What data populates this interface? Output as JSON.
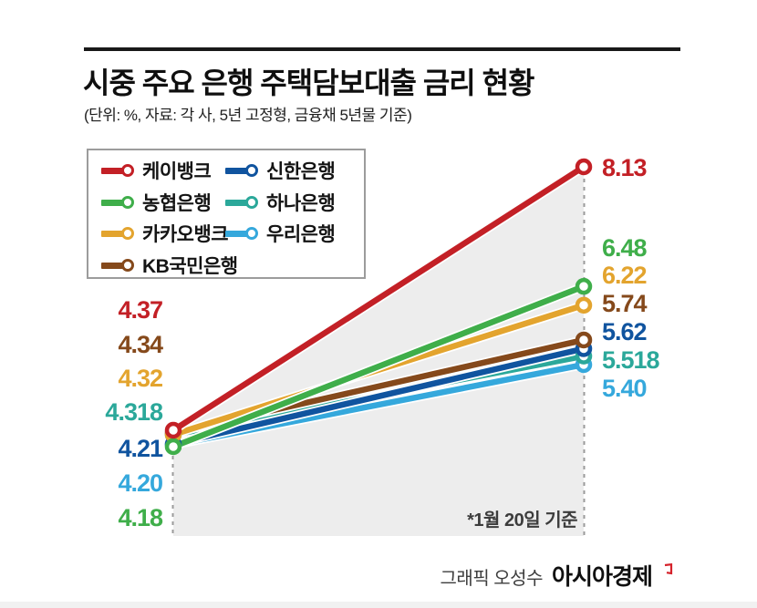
{
  "header": {
    "title": "시중 주요 은행 주택담보대출 금리 현황",
    "subtitle": "(단위: %, 자료: 각 사, 5년 고정형, 금융채 5년물 기준)"
  },
  "note": "*1월 20일 기준",
  "footer": {
    "credit": "그래픽 오성수",
    "brand": "아시아경제"
  },
  "colors": {
    "shade": "#ededed",
    "dashed_line": "#9b9b9b",
    "brand_mark": "#d5212a"
  },
  "chart_data": {
    "type": "line",
    "title": "시중 주요 은행 주택담보대출 금리 현황",
    "unit": "%",
    "annotation": "*1월 20일 기준",
    "legend_position": "top-left",
    "legend_columns": [
      [
        "케이뱅크",
        "농협은행",
        "카카오뱅크",
        "KB국민은행"
      ],
      [
        "신한은행",
        "하나은행",
        "우리은행"
      ]
    ],
    "series": [
      {
        "name": "케이뱅크",
        "color": "#c32026",
        "values": [
          4.37,
          8.13
        ],
        "labels": [
          "4.37",
          "8.13"
        ]
      },
      {
        "name": "농협은행",
        "color": "#3fae4a",
        "values": [
          4.18,
          6.48
        ],
        "labels": [
          "4.18",
          "6.48"
        ]
      },
      {
        "name": "카카오뱅크",
        "color": "#e3a42e",
        "values": [
          4.32,
          6.22
        ],
        "labels": [
          "4.32",
          "6.22"
        ]
      },
      {
        "name": "KB국민은행",
        "color": "#85491b",
        "values": [
          4.34,
          5.74
        ],
        "labels": [
          "4.34",
          "5.74"
        ]
      },
      {
        "name": "신한은행",
        "color": "#10549f",
        "values": [
          4.21,
          5.62
        ],
        "labels": [
          "4.21",
          "5.62"
        ]
      },
      {
        "name": "하나은행",
        "color": "#2ba89a",
        "values": [
          4.318,
          5.518
        ],
        "labels": [
          "4.318",
          "5.518"
        ]
      },
      {
        "name": "우리은행",
        "color": "#35a8dc",
        "values": [
          4.2,
          5.4
        ],
        "labels": [
          "4.20",
          "5.40"
        ]
      }
    ]
  }
}
